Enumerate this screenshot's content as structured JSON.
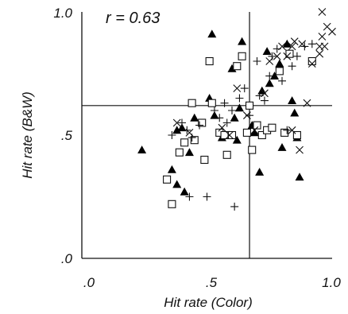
{
  "chart_data": {
    "type": "scatter",
    "annotation": "r = 0.63",
    "xlabel": "Hit rate (Color)",
    "ylabel": "Hit rate (B&W)",
    "xlim": [
      0,
      1
    ],
    "ylim": [
      0,
      1
    ],
    "x_ticks": [
      ".0",
      ".5",
      "1.0"
    ],
    "y_ticks": [
      ".0",
      ".5",
      "1.0"
    ],
    "reference_lines": {
      "x": 0.67,
      "y": 0.62
    },
    "grid": false,
    "legend": "none",
    "series": [
      {
        "marker": "filled-triangle",
        "points": [
          [
            0.24,
            0.44
          ],
          [
            0.38,
            0.52
          ],
          [
            0.4,
            0.53
          ],
          [
            0.36,
            0.36
          ],
          [
            0.38,
            0.3
          ],
          [
            0.41,
            0.27
          ],
          [
            0.43,
            0.43
          ],
          [
            0.45,
            0.57
          ],
          [
            0.51,
            0.65
          ],
          [
            0.53,
            0.58
          ],
          [
            0.56,
            0.49
          ],
          [
            0.59,
            0.5
          ],
          [
            0.61,
            0.57
          ],
          [
            0.62,
            0.48
          ],
          [
            0.63,
            0.61
          ],
          [
            0.64,
            0.88
          ],
          [
            0.68,
            0.54
          ],
          [
            0.69,
            0.51
          ],
          [
            0.71,
            0.35
          ],
          [
            0.72,
            0.68
          ],
          [
            0.75,
            0.71
          ],
          [
            0.77,
            0.74
          ],
          [
            0.79,
            0.79
          ],
          [
            0.8,
            0.45
          ],
          [
            0.82,
            0.87
          ],
          [
            0.84,
            0.64
          ],
          [
            0.85,
            0.59
          ],
          [
            0.86,
            0.49
          ],
          [
            0.87,
            0.33
          ],
          [
            0.52,
            0.91
          ],
          [
            0.6,
            0.77
          ],
          [
            0.74,
            0.84
          ]
        ]
      },
      {
        "marker": "open-square",
        "points": [
          [
            0.34,
            0.32
          ],
          [
            0.36,
            0.22
          ],
          [
            0.39,
            0.43
          ],
          [
            0.41,
            0.47
          ],
          [
            0.44,
            0.63
          ],
          [
            0.45,
            0.48
          ],
          [
            0.48,
            0.55
          ],
          [
            0.49,
            0.4
          ],
          [
            0.51,
            0.8
          ],
          [
            0.52,
            0.63
          ],
          [
            0.55,
            0.51
          ],
          [
            0.57,
            0.5
          ],
          [
            0.58,
            0.42
          ],
          [
            0.6,
            0.5
          ],
          [
            0.62,
            0.78
          ],
          [
            0.64,
            0.82
          ],
          [
            0.66,
            0.51
          ],
          [
            0.67,
            0.62
          ],
          [
            0.68,
            0.44
          ],
          [
            0.7,
            0.54
          ],
          [
            0.72,
            0.5
          ],
          [
            0.74,
            0.52
          ],
          [
            0.76,
            0.53
          ],
          [
            0.79,
            0.76
          ],
          [
            0.81,
            0.51
          ],
          [
            0.83,
            0.83
          ],
          [
            0.86,
            0.5
          ],
          [
            0.92,
            0.8
          ]
        ]
      },
      {
        "marker": "plus",
        "points": [
          [
            0.36,
            0.5
          ],
          [
            0.4,
            0.55
          ],
          [
            0.42,
            0.52
          ],
          [
            0.43,
            0.25
          ],
          [
            0.44,
            0.49
          ],
          [
            0.47,
            0.54
          ],
          [
            0.5,
            0.25
          ],
          [
            0.53,
            0.6
          ],
          [
            0.55,
            0.57
          ],
          [
            0.57,
            0.63
          ],
          [
            0.58,
            0.55
          ],
          [
            0.6,
            0.6
          ],
          [
            0.61,
            0.21
          ],
          [
            0.63,
            0.65
          ],
          [
            0.65,
            0.69
          ],
          [
            0.67,
            0.58
          ],
          [
            0.7,
            0.8
          ],
          [
            0.71,
            0.66
          ],
          [
            0.73,
            0.64
          ],
          [
            0.75,
            0.74
          ],
          [
            0.76,
            0.82
          ],
          [
            0.78,
            0.85
          ],
          [
            0.8,
            0.72
          ],
          [
            0.82,
            0.52
          ],
          [
            0.84,
            0.78
          ],
          [
            0.86,
            0.82
          ],
          [
            0.89,
            0.86
          ],
          [
            0.92,
            0.87
          ]
        ]
      },
      {
        "marker": "cross",
        "points": [
          [
            0.38,
            0.55
          ],
          [
            0.43,
            0.51
          ],
          [
            0.56,
            0.53
          ],
          [
            0.59,
            0.5
          ],
          [
            0.62,
            0.69
          ],
          [
            0.66,
            0.58
          ],
          [
            0.69,
            0.52
          ],
          [
            0.73,
            0.67
          ],
          [
            0.75,
            0.8
          ],
          [
            0.78,
            0.82
          ],
          [
            0.8,
            0.86
          ],
          [
            0.82,
            0.82
          ],
          [
            0.84,
            0.52
          ],
          [
            0.85,
            0.88
          ],
          [
            0.87,
            0.44
          ],
          [
            0.88,
            0.87
          ],
          [
            0.9,
            0.63
          ],
          [
            0.92,
            0.79
          ],
          [
            0.95,
            0.83
          ],
          [
            0.95,
            0.86
          ],
          [
            0.96,
            0.9
          ],
          [
            0.97,
            0.86
          ],
          [
            0.98,
            0.94
          ],
          [
            1.0,
            0.92
          ],
          [
            0.96,
            1.0
          ],
          [
            0.84,
            0.86
          ]
        ]
      }
    ]
  }
}
